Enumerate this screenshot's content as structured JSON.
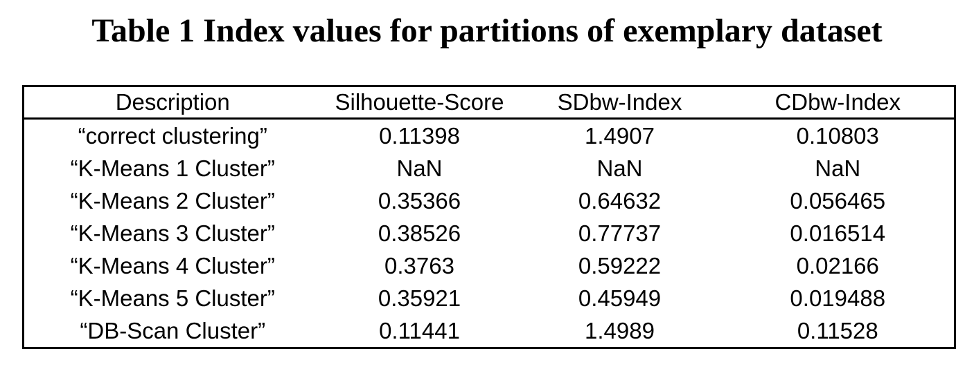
{
  "title": "Table 1 Index values for partitions of exemplary dataset",
  "table": {
    "columns": [
      "Description",
      "Silhouette-Score",
      "SDbw-Index",
      "CDbw-Index"
    ],
    "rows": [
      [
        "“correct clustering”",
        "0.11398",
        "1.4907",
        "0.10803"
      ],
      [
        "“K-Means 1 Cluster”",
        "NaN",
        "NaN",
        "NaN"
      ],
      [
        "“K-Means 2 Cluster”",
        "0.35366",
        "0.64632",
        "0.056465"
      ],
      [
        "“K-Means 3 Cluster”",
        "0.38526",
        "0.77737",
        "0.016514"
      ],
      [
        "“K-Means 4 Cluster”",
        "0.3763",
        "0.59222",
        "0.02166"
      ],
      [
        "“K-Means 5 Cluster”",
        "0.35921",
        "0.45949",
        "0.019488"
      ],
      [
        "“DB-Scan Cluster”",
        "0.11441",
        "1.4989",
        "0.11528"
      ]
    ]
  },
  "colors": {
    "text": "#000000",
    "background": "#ffffff",
    "border": "#000000"
  },
  "chart_data": {
    "type": "table",
    "title": "Table 1 Index values for partitions of exemplary dataset",
    "columns": [
      "Description",
      "Silhouette-Score",
      "SDbw-Index",
      "CDbw-Index"
    ],
    "rows": [
      [
        "correct clustering",
        0.11398,
        1.4907,
        0.10803
      ],
      [
        "K-Means 1 Cluster",
        null,
        null,
        null
      ],
      [
        "K-Means 2 Cluster",
        0.35366,
        0.64632,
        0.056465
      ],
      [
        "K-Means 3 Cluster",
        0.38526,
        0.77737,
        0.016514
      ],
      [
        "K-Means 4 Cluster",
        0.3763,
        0.59222,
        0.02166
      ],
      [
        "K-Means 5 Cluster",
        0.35921,
        0.45949,
        0.019488
      ],
      [
        "DB-Scan Cluster",
        0.11441,
        1.4989,
        0.11528
      ]
    ]
  }
}
